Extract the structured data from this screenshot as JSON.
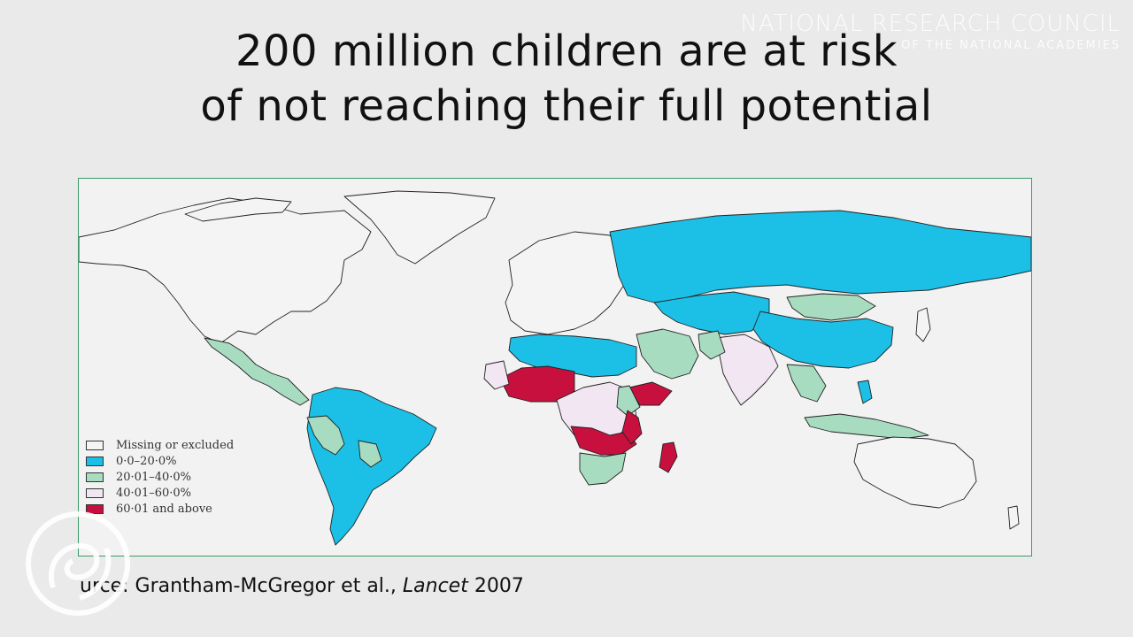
{
  "watermark": {
    "org": "NATIONAL RESEARCH COUNCIL",
    "sub": "OF THE NATIONAL ACADEMIES"
  },
  "slide": {
    "title_line1": "200 million children are at risk",
    "title_line2": "of not reaching their full potential"
  },
  "legend": [
    {
      "label": "Missing or excluded",
      "color": "#f4f4f4"
    },
    {
      "label": "0·0–20·0%",
      "color": "#1cc0e6"
    },
    {
      "label": "20·01–40·0%",
      "color": "#a8dcc0"
    },
    {
      "label": "40·01–60·0%",
      "color": "#f1e6f1"
    },
    {
      "label": "60·01 and above",
      "color": "#c8103e"
    }
  ],
  "source": {
    "prefix": "urce: Grantham-McGregor et al., ",
    "journal": "Lancet",
    "year": " 2007"
  },
  "colors": {
    "missing": "#f4f4f4",
    "low": "#1cc0e6",
    "mid": "#a8dcc0",
    "high": "#f1e6f1",
    "very_high": "#c8103e",
    "frame": "#3a9a6a"
  }
}
